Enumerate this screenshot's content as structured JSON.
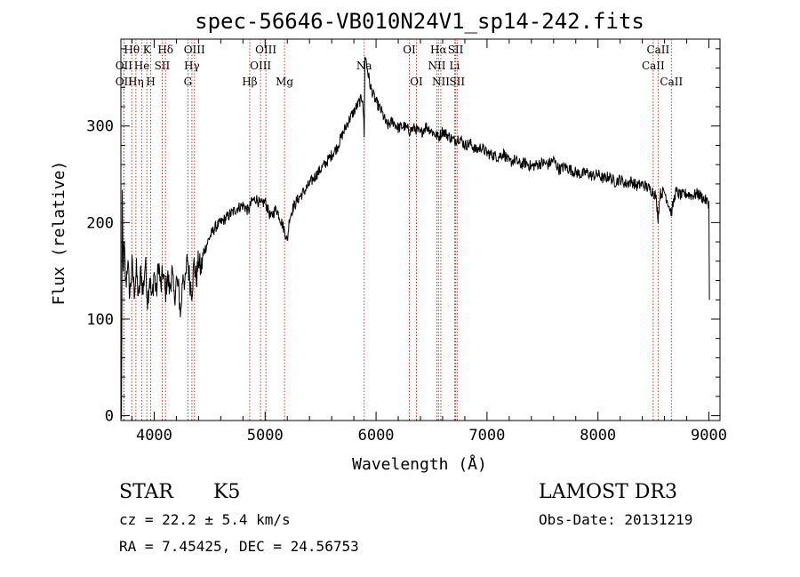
{
  "colors": {
    "spectrum": "#000000",
    "line_marker": "#c0392b"
  },
  "info": {
    "class": "STAR",
    "subclass": "K5",
    "cz": "cz = 22.2 ± 5.4 km/s",
    "coords": "RA =   7.45425, DEC =  24.56753",
    "survey": "LAMOST DR3",
    "obs_date": "Obs-Date: 20131219"
  },
  "chart_data": {
    "type": "line",
    "title": "spec-56646-VB010N24V1_sp14-242.fits",
    "xlabel": "Wavelength (Å)",
    "ylabel": "Flux (relative)",
    "xlim": [
      3700,
      9100
    ],
    "ylim": [
      -5,
      390
    ],
    "xticks": [
      4000,
      5000,
      6000,
      7000,
      8000,
      9000
    ],
    "yticks": [
      0,
      100,
      200,
      300
    ],
    "grid": false,
    "legend": "none",
    "spectrum_points": [
      [
        3700,
        0
      ],
      [
        3705,
        2
      ],
      [
        3712,
        220
      ],
      [
        3720,
        150
      ],
      [
        3730,
        175
      ],
      [
        3745,
        135
      ],
      [
        3760,
        160
      ],
      [
        3780,
        125
      ],
      [
        3800,
        155
      ],
      [
        3820,
        130
      ],
      [
        3840,
        150
      ],
      [
        3860,
        120
      ],
      [
        3880,
        150
      ],
      [
        3900,
        128
      ],
      [
        3920,
        160
      ],
      [
        3940,
        120
      ],
      [
        3960,
        145
      ],
      [
        3980,
        118
      ],
      [
        4000,
        150
      ],
      [
        4020,
        125
      ],
      [
        4040,
        160
      ],
      [
        4060,
        130
      ],
      [
        4080,
        150
      ],
      [
        4100,
        125
      ],
      [
        4120,
        145
      ],
      [
        4140,
        130
      ],
      [
        4160,
        150
      ],
      [
        4180,
        120
      ],
      [
        4200,
        140
      ],
      [
        4220,
        130
      ],
      [
        4240,
        105
      ],
      [
        4260,
        150
      ],
      [
        4280,
        135
      ],
      [
        4300,
        165
      ],
      [
        4320,
        140
      ],
      [
        4340,
        130
      ],
      [
        4360,
        158
      ],
      [
        4380,
        140
      ],
      [
        4400,
        162
      ],
      [
        4420,
        150
      ],
      [
        4450,
        170
      ],
      [
        4500,
        185
      ],
      [
        4550,
        195
      ],
      [
        4600,
        200
      ],
      [
        4650,
        205
      ],
      [
        4700,
        210
      ],
      [
        4750,
        215
      ],
      [
        4800,
        218
      ],
      [
        4850,
        212
      ],
      [
        4880,
        222
      ],
      [
        4920,
        225
      ],
      [
        4960,
        218
      ],
      [
        5000,
        222
      ],
      [
        5050,
        205
      ],
      [
        5100,
        215
      ],
      [
        5150,
        200
      ],
      [
        5180,
        190
      ],
      [
        5200,
        180
      ],
      [
        5220,
        205
      ],
      [
        5250,
        215
      ],
      [
        5300,
        225
      ],
      [
        5350,
        232
      ],
      [
        5400,
        240
      ],
      [
        5450,
        248
      ],
      [
        5500,
        255
      ],
      [
        5550,
        262
      ],
      [
        5600,
        270
      ],
      [
        5650,
        278
      ],
      [
        5700,
        292
      ],
      [
        5750,
        305
      ],
      [
        5800,
        315
      ],
      [
        5850,
        325
      ],
      [
        5880,
        330
      ],
      [
        5893,
        290
      ],
      [
        5900,
        375
      ],
      [
        5920,
        360
      ],
      [
        5950,
        340
      ],
      [
        6000,
        325
      ],
      [
        6050,
        315
      ],
      [
        6100,
        300
      ],
      [
        6150,
        305
      ],
      [
        6200,
        298
      ],
      [
        6250,
        300
      ],
      [
        6300,
        295
      ],
      [
        6350,
        298
      ],
      [
        6400,
        292
      ],
      [
        6450,
        300
      ],
      [
        6500,
        295
      ],
      [
        6563,
        288
      ],
      [
        6600,
        295
      ],
      [
        6650,
        290
      ],
      [
        6700,
        285
      ],
      [
        6750,
        288
      ],
      [
        6800,
        280
      ],
      [
        6850,
        282
      ],
      [
        6900,
        275
      ],
      [
        6950,
        278
      ],
      [
        7000,
        272
      ],
      [
        7050,
        270
      ],
      [
        7100,
        268
      ],
      [
        7150,
        272
      ],
      [
        7200,
        262
      ],
      [
        7250,
        265
      ],
      [
        7300,
        260
      ],
      [
        7350,
        262
      ],
      [
        7400,
        258
      ],
      [
        7450,
        260
      ],
      [
        7500,
        262
      ],
      [
        7550,
        260
      ],
      [
        7600,
        265
      ],
      [
        7650,
        255
      ],
      [
        7700,
        258
      ],
      [
        7750,
        255
      ],
      [
        7800,
        252
      ],
      [
        7850,
        250
      ],
      [
        7900,
        252
      ],
      [
        7950,
        248
      ],
      [
        8000,
        250
      ],
      [
        8050,
        245
      ],
      [
        8100,
        248
      ],
      [
        8150,
        242
      ],
      [
        8200,
        245
      ],
      [
        8250,
        240
      ],
      [
        8300,
        243
      ],
      [
        8350,
        238
      ],
      [
        8400,
        240
      ],
      [
        8450,
        236
      ],
      [
        8498,
        232
      ],
      [
        8520,
        228
      ],
      [
        8542,
        205
      ],
      [
        8560,
        230
      ],
      [
        8600,
        232
      ],
      [
        8662,
        210
      ],
      [
        8700,
        232
      ],
      [
        8750,
        228
      ],
      [
        8800,
        230
      ],
      [
        8850,
        228
      ],
      [
        8900,
        230
      ],
      [
        8950,
        225
      ],
      [
        9000,
        220
      ],
      [
        9005,
        120
      ]
    ],
    "spectral_lines": [
      {
        "label": "Hθ",
        "x": 3798,
        "row": 0
      },
      {
        "label": "OII",
        "x": 3727,
        "row": 1
      },
      {
        "label": "OII",
        "x": 3727,
        "row": 2
      },
      {
        "label": "He",
        "x": 3889,
        "row": 1
      },
      {
        "label": "Hη",
        "x": 3835,
        "row": 2
      },
      {
        "label": "K",
        "x": 3934,
        "row": 0
      },
      {
        "label": "H",
        "x": 3969,
        "row": 2
      },
      {
        "label": "Hδ",
        "x": 4102,
        "row": 0
      },
      {
        "label": "SII",
        "x": 4072,
        "row": 1
      },
      {
        "label": "OIII",
        "x": 4363,
        "row": 0
      },
      {
        "label": "Hγ",
        "x": 4340,
        "row": 1
      },
      {
        "label": "G",
        "x": 4304,
        "row": 2
      },
      {
        "label": "Hβ",
        "x": 4861,
        "row": 2
      },
      {
        "label": "OIII",
        "x": 5007,
        "row": 0
      },
      {
        "label": "OIII",
        "x": 4959,
        "row": 1
      },
      {
        "label": "Mg",
        "x": 5175,
        "row": 2
      },
      {
        "label": "Na",
        "x": 5893,
        "row": 1
      },
      {
        "label": "OI",
        "x": 6300,
        "row": 0
      },
      {
        "label": "OI",
        "x": 6364,
        "row": 2
      },
      {
        "label": "Hα",
        "x": 6563,
        "row": 0
      },
      {
        "label": "NII",
        "x": 6548,
        "row": 1
      },
      {
        "label": "NII",
        "x": 6584,
        "row": 2
      },
      {
        "label": "SII",
        "x": 6717,
        "row": 0
      },
      {
        "label": "Li",
        "x": 6708,
        "row": 1
      },
      {
        "label": "SII",
        "x": 6731,
        "row": 2
      },
      {
        "label": "CaII",
        "x": 8542,
        "row": 0
      },
      {
        "label": "CaII",
        "x": 8498,
        "row": 1
      },
      {
        "label": "CaII",
        "x": 8662,
        "row": 2
      }
    ]
  }
}
